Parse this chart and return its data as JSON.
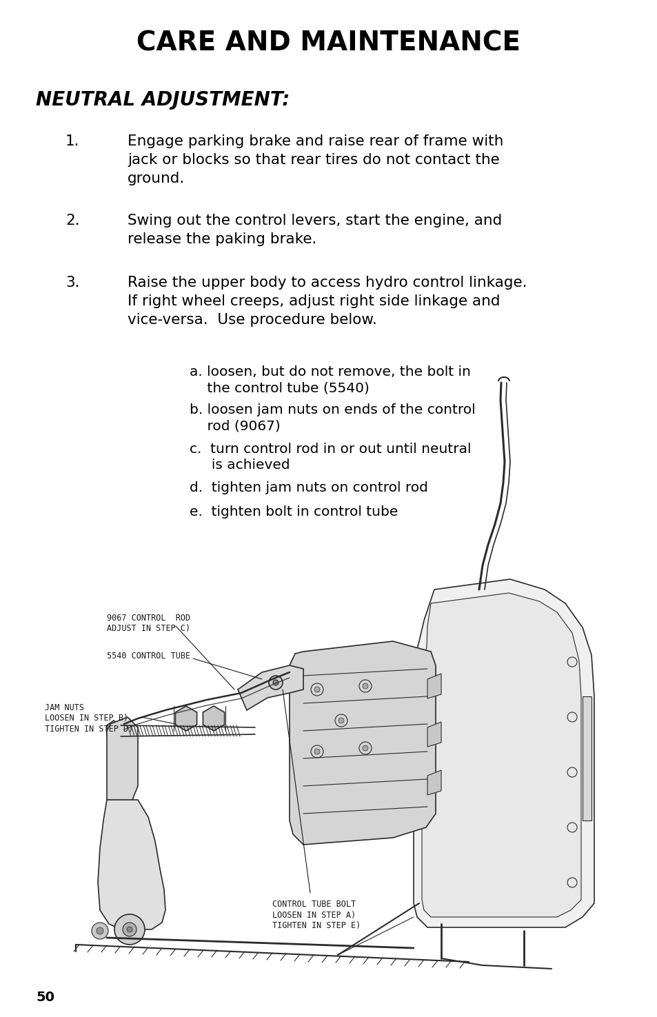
{
  "title": "CARE AND MAINTENANCE",
  "subtitle": "NEUTRAL ADJUSTMENT:",
  "bg_color": "#ffffff",
  "text_color": "#000000",
  "page_number": "50",
  "title_fontsize": 28,
  "subtitle_fontsize": 20,
  "body_fontsize": 15.5,
  "items_fontsize": 14.5,
  "label_fontsize": 8.5,
  "numbered_items": [
    {
      "number": "1.",
      "text": "Engage parking brake and raise rear of frame with\njack or blocks so that rear tires do not contact the\nground."
    },
    {
      "number": "2.",
      "text": "Swing out the control levers, start the engine, and\nrelease the paking brake."
    },
    {
      "number": "3.",
      "text": "Raise the upper body to access hydro control linkage.\nIf right wheel creeps, adjust right side linkage and\nvice-versa.  Use procedure below."
    }
  ],
  "sub_items": [
    [
      "a.",
      "loosen, but do not remove, the bolt in\n    the control tube (5540)"
    ],
    [
      "b.",
      "loosen jam nuts on ends of the control\n    rod (9067)"
    ],
    [
      "c. ",
      "turn control rod in or out until neutral\n     is achieved"
    ],
    [
      "d. ",
      "tighten jam nuts on control rod"
    ],
    [
      "e. ",
      "tighten bolt in control tube"
    ]
  ]
}
